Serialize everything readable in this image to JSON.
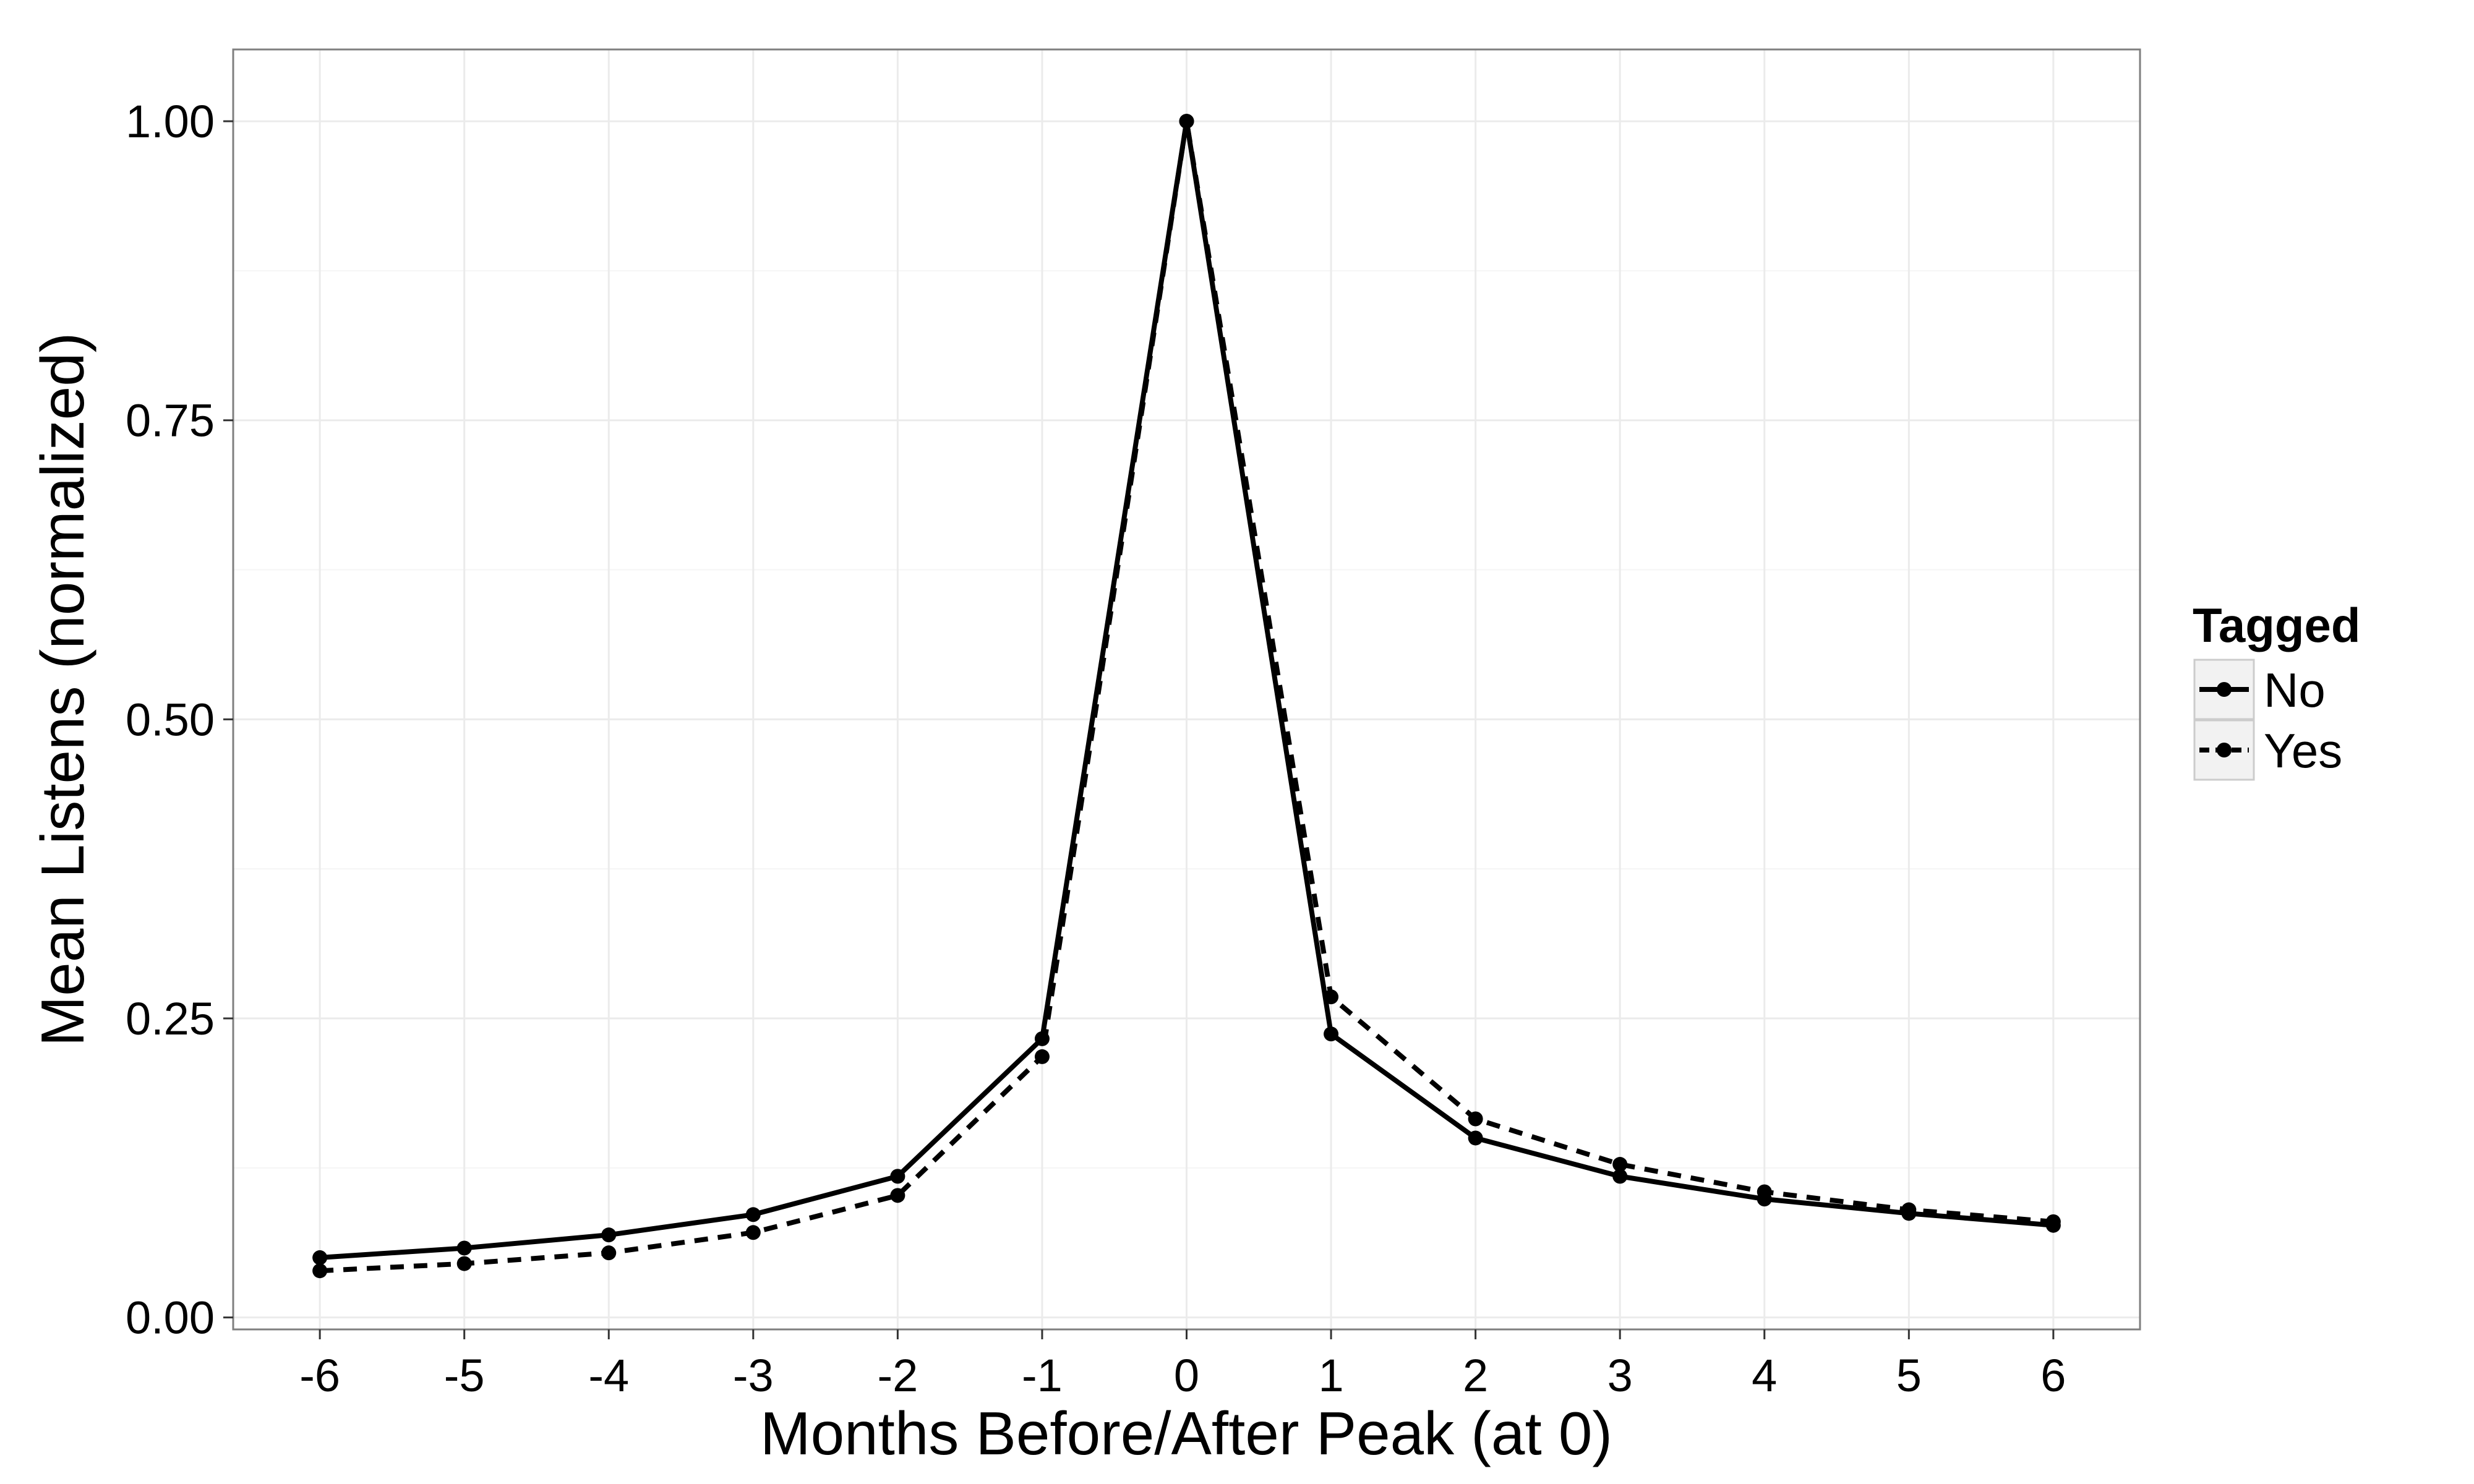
{
  "chart_data": {
    "type": "line",
    "x": [
      -6,
      -5,
      -4,
      -3,
      -2,
      -1,
      0,
      1,
      2,
      3,
      4,
      5,
      6
    ],
    "x_tick_labels": [
      "-6",
      "-5",
      "-4",
      "-3",
      "-2",
      "-1",
      "0",
      "1",
      "2",
      "3",
      "4",
      "5",
      "6"
    ],
    "y_ticks": [
      0.0,
      0.25,
      0.5,
      0.75,
      1.0
    ],
    "y_tick_labels": [
      "0.00",
      "0.25",
      "0.50",
      "0.75",
      "1.00"
    ],
    "xlim": [
      -6.6,
      6.6
    ],
    "ylim": [
      -0.01,
      1.06
    ],
    "xlabel": "Months Before/After Peak (at 0)",
    "ylabel": "Mean Listens (normalized)",
    "grid": true,
    "legend": {
      "title": "Tagged",
      "position": "right"
    },
    "series": [
      {
        "name": "No",
        "line_style": "solid",
        "values": [
          0.05,
          0.058,
          0.069,
          0.086,
          0.118,
          0.233,
          1.0,
          0.237,
          0.15,
          0.118,
          0.099,
          0.087,
          0.077
        ]
      },
      {
        "name": "Yes",
        "line_style": "dashed",
        "values": [
          0.039,
          0.045,
          0.054,
          0.071,
          0.102,
          0.218,
          1.0,
          0.268,
          0.166,
          0.128,
          0.105,
          0.09,
          0.08
        ]
      }
    ],
    "colors": {
      "line": "#000000",
      "panel_border": "#7f7f7f",
      "grid_major": "#ebebeb",
      "grid_minor": "#f5f5f5"
    }
  }
}
